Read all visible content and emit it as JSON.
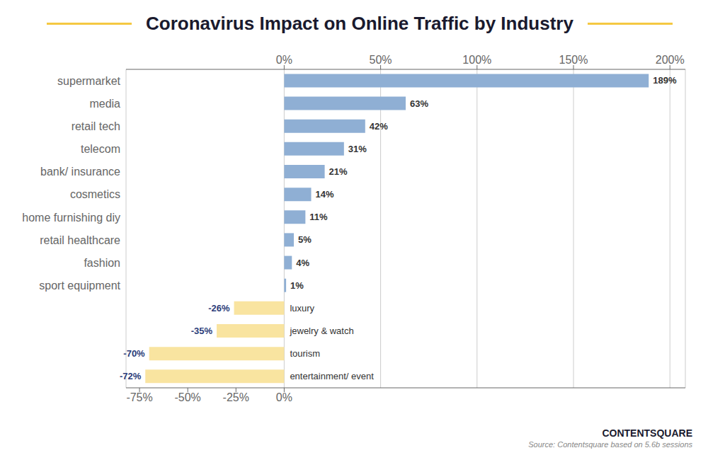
{
  "chart_data": {
    "type": "bar",
    "orientation": "horizontal",
    "title": "Coronavirus Impact on Online Traffic by Industry",
    "categories": [
      "supermarket",
      "media",
      "retail tech",
      "telecom",
      "bank/ insurance",
      "cosmetics",
      "home furnishing diy",
      "retail healthcare",
      "fashion",
      "sport equipment",
      "luxury",
      "jewelry & watch",
      "tourism",
      "entertainment/ event"
    ],
    "values": [
      189,
      63,
      42,
      31,
      21,
      14,
      11,
      5,
      4,
      1,
      -26,
      -35,
      -70,
      -72
    ],
    "value_labels": [
      "189%",
      "63%",
      "42%",
      "31%",
      "21%",
      "14%",
      "11%",
      "5%",
      "4%",
      "1%",
      "-26%",
      "-35%",
      "-70%",
      "-72%"
    ],
    "colors": [
      "#8fafd4",
      "#8fafd4",
      "#8fafd4",
      "#8fafd4",
      "#8fafd4",
      "#8fafd4",
      "#8fafd4",
      "#8fafd4",
      "#8fafd4",
      "#8fafd4",
      "#f9e4a0",
      "#f9e4a0",
      "#f9e4a0",
      "#f9e4a0"
    ],
    "data_labels": true,
    "grid": true,
    "xlim": [
      -82,
      208
    ],
    "xticks": [
      {
        "value": -75,
        "label": "-75%"
      },
      {
        "value": -50,
        "label": "-50%"
      },
      {
        "value": -25,
        "label": "-25%"
      },
      {
        "value": 0,
        "label": "0%"
      }
    ],
    "x2lim": [
      -82,
      208
    ],
    "x2ticks": [
      {
        "value": 0,
        "label": "0%"
      },
      {
        "value": 50,
        "label": "50%"
      },
      {
        "value": 100,
        "label": "100%"
      },
      {
        "value": 150,
        "label": "150%"
      },
      {
        "value": 200,
        "label": "200%"
      }
    ],
    "annotations": [
      "Source: Contentsquare based on 5.6b sessions",
      "CONTENTSQUARE"
    ]
  }
}
